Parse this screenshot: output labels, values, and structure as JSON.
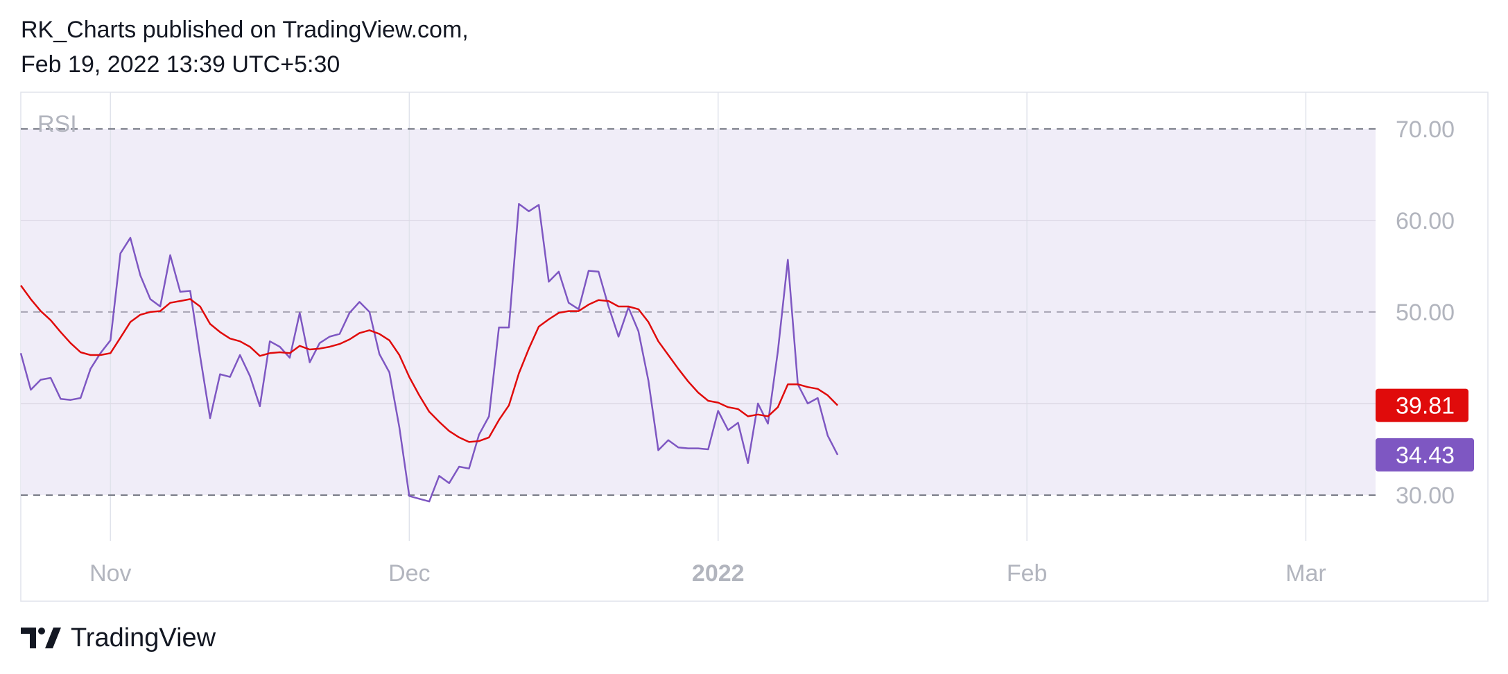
{
  "header": {
    "line1": "RK_Charts published on TradingView.com,",
    "line2": "Feb 19, 2022 13:39 UTC+5:30"
  },
  "footer": {
    "brand": "TradingView",
    "logo_icon": "tradingview-logo-icon"
  },
  "chart_data": {
    "type": "line",
    "title": "",
    "indicator_label": "RSI",
    "ylim": [
      25,
      74
    ],
    "y_ticks": [
      "70.00",
      "60.00",
      "50.00",
      "30.00"
    ],
    "y_tick_values": [
      70,
      60,
      50,
      30
    ],
    "bands": {
      "upper": 70,
      "middle": 50,
      "lower": 30
    },
    "x_ticks": [
      {
        "label": "Nov",
        "date": "2021-11-01",
        "bold": false
      },
      {
        "label": "Dec",
        "date": "2021-12-01",
        "bold": false
      },
      {
        "label": "2022",
        "date": "2022-01-01",
        "bold": true
      },
      {
        "label": "Feb",
        "date": "2022-02-01",
        "bold": false
      },
      {
        "label": "Mar",
        "date": "2022-03-01",
        "bold": false
      }
    ],
    "x_range": [
      "2021-10-23",
      "2022-03-08"
    ],
    "grid": true,
    "colors": {
      "rsi": "#7e57c2",
      "rsi_ma": "#e00b0b",
      "band_fill": "#f0edf8",
      "axis_text": "#b2b5be"
    },
    "series": [
      {
        "role": "rsi",
        "color": "#7e57c2",
        "last_value_label": "34.43",
        "points": [
          [
            "2021-10-23",
            45.5
          ],
          [
            "2021-10-24",
            41.5
          ],
          [
            "2021-10-25",
            42.6
          ],
          [
            "2021-10-26",
            42.8
          ],
          [
            "2021-10-27",
            40.5
          ],
          [
            "2021-10-28",
            40.4
          ],
          [
            "2021-10-29",
            40.6
          ],
          [
            "2021-10-30",
            43.8
          ],
          [
            "2021-10-31",
            45.5
          ],
          [
            "2021-11-01",
            46.9
          ],
          [
            "2021-11-02",
            56.4
          ],
          [
            "2021-11-03",
            58.1
          ],
          [
            "2021-11-04",
            54.0
          ],
          [
            "2021-11-05",
            51.4
          ],
          [
            "2021-11-06",
            50.6
          ],
          [
            "2021-11-07",
            56.2
          ],
          [
            "2021-11-08",
            52.2
          ],
          [
            "2021-11-09",
            52.3
          ],
          [
            "2021-11-10",
            45.2
          ],
          [
            "2021-11-11",
            38.4
          ],
          [
            "2021-11-12",
            43.2
          ],
          [
            "2021-11-13",
            42.9
          ],
          [
            "2021-11-14",
            45.3
          ],
          [
            "2021-11-15",
            43.0
          ],
          [
            "2021-11-16",
            39.7
          ],
          [
            "2021-11-17",
            46.8
          ],
          [
            "2021-11-18",
            46.2
          ],
          [
            "2021-11-19",
            45.0
          ],
          [
            "2021-11-20",
            49.9
          ],
          [
            "2021-11-21",
            44.5
          ],
          [
            "2021-11-22",
            46.6
          ],
          [
            "2021-11-23",
            47.3
          ],
          [
            "2021-11-24",
            47.6
          ],
          [
            "2021-11-25",
            49.9
          ],
          [
            "2021-11-26",
            51.1
          ],
          [
            "2021-11-27",
            50.0
          ],
          [
            "2021-11-28",
            45.4
          ],
          [
            "2021-11-29",
            43.4
          ],
          [
            "2021-11-30",
            37.4
          ],
          [
            "2021-12-01",
            29.9
          ],
          [
            "2021-12-02",
            29.6
          ],
          [
            "2021-12-03",
            29.3
          ],
          [
            "2021-12-04",
            32.1
          ],
          [
            "2021-12-05",
            31.3
          ],
          [
            "2021-12-06",
            33.1
          ],
          [
            "2021-12-07",
            32.9
          ],
          [
            "2021-12-08",
            36.6
          ],
          [
            "2021-12-09",
            38.6
          ],
          [
            "2021-12-10",
            48.3
          ],
          [
            "2021-12-11",
            48.3
          ],
          [
            "2021-12-12",
            61.8
          ],
          [
            "2021-12-13",
            61.0
          ],
          [
            "2021-12-14",
            61.7
          ],
          [
            "2021-12-15",
            53.3
          ],
          [
            "2021-12-16",
            54.4
          ],
          [
            "2021-12-17",
            51.0
          ],
          [
            "2021-12-18",
            50.3
          ],
          [
            "2021-12-19",
            54.5
          ],
          [
            "2021-12-20",
            54.4
          ],
          [
            "2021-12-21",
            50.6
          ],
          [
            "2021-12-22",
            47.3
          ],
          [
            "2021-12-23",
            50.5
          ],
          [
            "2021-12-24",
            47.9
          ],
          [
            "2021-12-25",
            42.5
          ],
          [
            "2021-12-26",
            34.9
          ],
          [
            "2021-12-27",
            36.0
          ],
          [
            "2021-12-28",
            35.2
          ],
          [
            "2021-12-29",
            35.1
          ],
          [
            "2021-12-30",
            35.1
          ],
          [
            "2021-12-31",
            35.0
          ],
          [
            "2022-01-01",
            39.2
          ],
          [
            "2022-01-02",
            37.1
          ],
          [
            "2022-01-03",
            37.9
          ],
          [
            "2022-01-04",
            33.5
          ],
          [
            "2022-01-05",
            40.0
          ],
          [
            "2022-01-06",
            37.8
          ],
          [
            "2022-01-07",
            45.7
          ],
          [
            "2022-01-08",
            55.7
          ],
          [
            "2022-01-09",
            42.1
          ],
          [
            "2022-01-10",
            40.0
          ],
          [
            "2022-01-11",
            40.6
          ],
          [
            "2022-01-12",
            36.5
          ],
          [
            "2022-01-13",
            34.4
          ]
        ]
      },
      {
        "role": "rsi_ma",
        "color": "#e00b0b",
        "last_value_label": "39.81",
        "points": [
          [
            "2021-10-23",
            52.9
          ],
          [
            "2021-10-24",
            51.4
          ],
          [
            "2021-10-25",
            50.1
          ],
          [
            "2021-10-26",
            49.1
          ],
          [
            "2021-10-27",
            47.8
          ],
          [
            "2021-10-28",
            46.6
          ],
          [
            "2021-10-29",
            45.6
          ],
          [
            "2021-10-30",
            45.3
          ],
          [
            "2021-10-31",
            45.3
          ],
          [
            "2021-11-01",
            45.5
          ],
          [
            "2021-11-02",
            47.2
          ],
          [
            "2021-11-03",
            48.9
          ],
          [
            "2021-11-04",
            49.7
          ],
          [
            "2021-11-05",
            50.0
          ],
          [
            "2021-11-06",
            50.1
          ],
          [
            "2021-11-07",
            51.0
          ],
          [
            "2021-11-08",
            51.2
          ],
          [
            "2021-11-09",
            51.4
          ],
          [
            "2021-11-10",
            50.6
          ],
          [
            "2021-11-11",
            48.7
          ],
          [
            "2021-11-12",
            47.8
          ],
          [
            "2021-11-13",
            47.1
          ],
          [
            "2021-11-14",
            46.8
          ],
          [
            "2021-11-15",
            46.2
          ],
          [
            "2021-11-16",
            45.2
          ],
          [
            "2021-11-17",
            45.5
          ],
          [
            "2021-11-18",
            45.6
          ],
          [
            "2021-11-19",
            45.5
          ],
          [
            "2021-11-20",
            46.3
          ],
          [
            "2021-11-21",
            45.9
          ],
          [
            "2021-11-22",
            46.0
          ],
          [
            "2021-11-23",
            46.2
          ],
          [
            "2021-11-24",
            46.5
          ],
          [
            "2021-11-25",
            47.0
          ],
          [
            "2021-11-26",
            47.7
          ],
          [
            "2021-11-27",
            48.0
          ],
          [
            "2021-11-28",
            47.6
          ],
          [
            "2021-11-29",
            46.9
          ],
          [
            "2021-11-30",
            45.3
          ],
          [
            "2021-12-01",
            42.9
          ],
          [
            "2021-12-02",
            40.9
          ],
          [
            "2021-12-03",
            39.1
          ],
          [
            "2021-12-04",
            38.0
          ],
          [
            "2021-12-05",
            37.0
          ],
          [
            "2021-12-06",
            36.3
          ],
          [
            "2021-12-07",
            35.8
          ],
          [
            "2021-12-08",
            35.9
          ],
          [
            "2021-12-09",
            36.3
          ],
          [
            "2021-12-10",
            38.2
          ],
          [
            "2021-12-11",
            39.8
          ],
          [
            "2021-12-12",
            43.3
          ],
          [
            "2021-12-13",
            46.0
          ],
          [
            "2021-12-14",
            48.4
          ],
          [
            "2021-12-15",
            49.2
          ],
          [
            "2021-12-16",
            49.9
          ],
          [
            "2021-12-17",
            50.1
          ],
          [
            "2021-12-18",
            50.1
          ],
          [
            "2021-12-19",
            50.8
          ],
          [
            "2021-12-20",
            51.3
          ],
          [
            "2021-12-21",
            51.2
          ],
          [
            "2021-12-22",
            50.6
          ],
          [
            "2021-12-23",
            50.6
          ],
          [
            "2021-12-24",
            50.3
          ],
          [
            "2021-12-25",
            48.9
          ],
          [
            "2021-12-26",
            46.8
          ],
          [
            "2021-12-27",
            45.3
          ],
          [
            "2021-12-28",
            43.8
          ],
          [
            "2021-12-29",
            42.4
          ],
          [
            "2021-12-30",
            41.2
          ],
          [
            "2021-12-31",
            40.3
          ],
          [
            "2022-01-01",
            40.1
          ],
          [
            "2022-01-02",
            39.6
          ],
          [
            "2022-01-03",
            39.4
          ],
          [
            "2022-01-04",
            38.6
          ],
          [
            "2022-01-05",
            38.8
          ],
          [
            "2022-01-06",
            38.6
          ],
          [
            "2022-01-07",
            39.6
          ],
          [
            "2022-01-08",
            42.1
          ],
          [
            "2022-01-09",
            42.1
          ],
          [
            "2022-01-10",
            41.8
          ],
          [
            "2022-01-11",
            41.6
          ],
          [
            "2022-01-12",
            40.9
          ],
          [
            "2022-01-13",
            39.8
          ]
        ]
      }
    ]
  }
}
